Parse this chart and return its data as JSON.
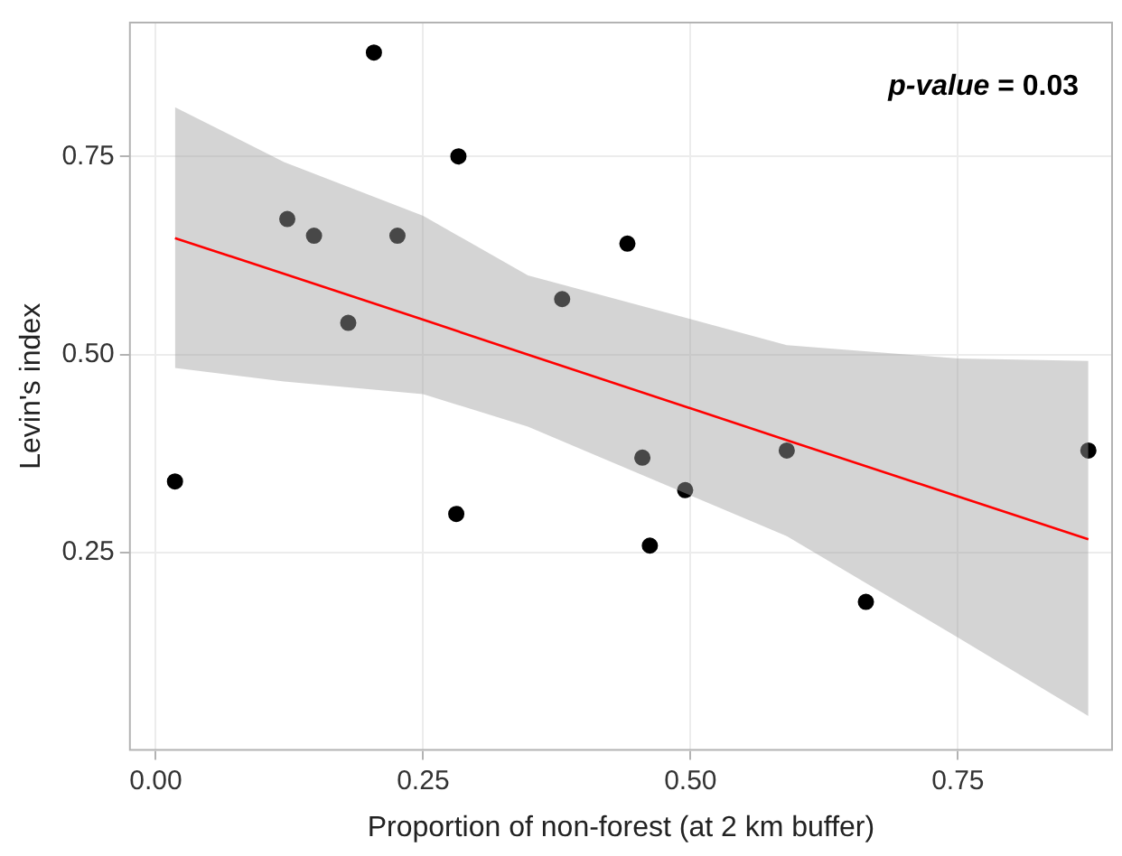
{
  "chart_data": {
    "type": "scatter",
    "xlabel": "Proportion of non-forest (at 2 km buffer)",
    "ylabel": "Levin's index",
    "annotations": [
      "p-value = 0.03"
    ],
    "series": [
      {
        "color": "#000000",
        "marker": "circle",
        "x": [
          0.018,
          0.204,
          0.283,
          0.123,
          0.148,
          0.226,
          0.18,
          0.281,
          0.38,
          0.441,
          0.455,
          0.462,
          0.495,
          0.59,
          0.664,
          0.872
        ],
        "values": [
          0.34,
          0.881,
          0.75,
          0.671,
          0.65,
          0.65,
          0.54,
          0.299,
          0.57,
          0.64,
          0.37,
          0.259,
          0.329,
          0.379,
          0.188,
          0.379
        ]
      },
      {
        "type": "line",
        "marker": "none",
        "color": "#ff0000",
        "x": [
          0.018,
          0.12,
          0.25,
          0.348,
          0.59,
          0.75,
          0.872
        ],
        "values": [
          0.647,
          0.602,
          0.544,
          0.5,
          0.392,
          0.321,
          0.267
        ],
        "lower": [
          0.483,
          0.466,
          0.45,
          0.409,
          0.271,
          0.143,
          0.044
        ],
        "upper": [
          0.812,
          0.743,
          0.675,
          0.6,
          0.512,
          0.495,
          0.492
        ]
      }
    ],
    "xlim": [
      -0.025,
      0.895
    ],
    "xticks": [
      {
        "value": 0,
        "label": "0.00"
      },
      0.25,
      {
        "value": 0.5,
        "label": "0.50"
      },
      0.75
    ],
    "ylim": [
      0.0,
      0.92
    ],
    "yticks": [
      0.25,
      {
        "value": 0.5,
        "label": "0.50"
      },
      0.75
    ],
    "grid": true
  }
}
